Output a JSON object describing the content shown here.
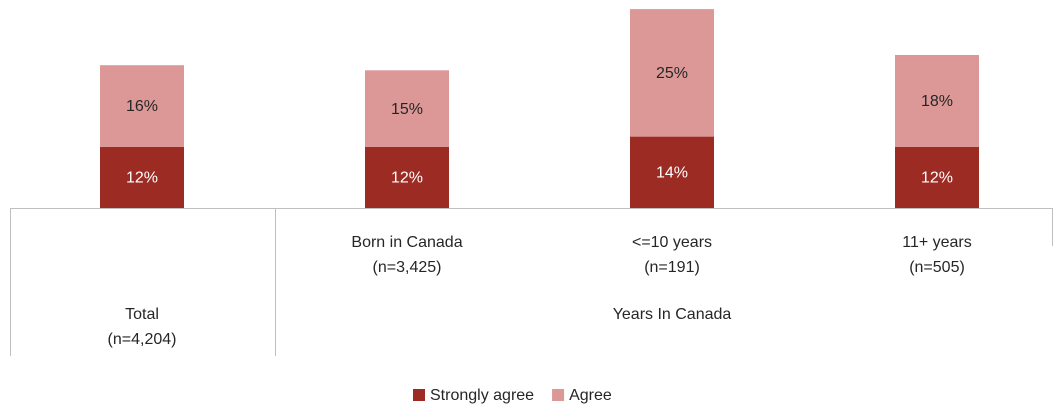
{
  "chart_data": {
    "type": "stacked_bar",
    "categories": [
      {
        "label": "Total",
        "count": "(n=4,204)"
      },
      {
        "label": "Born in Canada",
        "count": "(n=3,425)"
      },
      {
        "label": "<=10 years",
        "count": "(n=191)"
      },
      {
        "label": "11+ years",
        "count": "(n=505)"
      }
    ],
    "groups": [
      {
        "label": "Years In Canada",
        "members": [
          1,
          2,
          3
        ]
      }
    ],
    "series": [
      {
        "name": "Strongly agree",
        "color": "#9c2b24",
        "values": [
          12,
          12,
          14,
          12
        ],
        "value_labels": [
          "12%",
          "12%",
          "14%",
          "12%"
        ]
      },
      {
        "name": "Agree",
        "color": "#dc9896",
        "values": [
          16,
          15,
          25,
          18
        ],
        "value_labels": [
          "16%",
          "15%",
          "25%",
          "18%"
        ]
      }
    ],
    "legend": "bottom"
  }
}
